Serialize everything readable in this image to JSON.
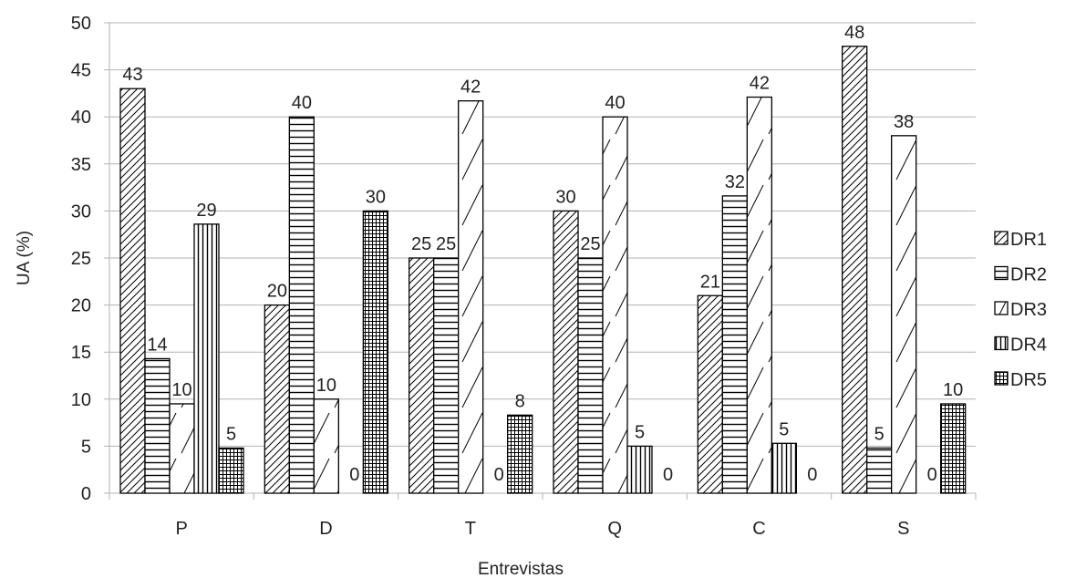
{
  "chart_data": {
    "type": "bar",
    "title": "",
    "xlabel": "Entrevistas",
    "ylabel": "UA (%)",
    "categories": [
      "P",
      "D",
      "T",
      "Q",
      "C",
      "S"
    ],
    "ylim": [
      0,
      50
    ],
    "yticks": [
      0,
      5,
      10,
      15,
      20,
      25,
      30,
      35,
      40,
      45,
      50
    ],
    "grid": true,
    "legend_position": "right",
    "series": [
      {
        "name": "DR1",
        "pattern": "diagonal-hatch",
        "values": [
          43,
          20,
          25,
          30,
          21,
          47.5
        ],
        "labels": [
          "43",
          "20",
          "25",
          "30",
          "21",
          "48"
        ]
      },
      {
        "name": "DR2",
        "pattern": "horizontal-lines",
        "values": [
          14.3,
          40,
          25,
          25,
          31.6,
          4.8
        ],
        "labels": [
          "14",
          "40",
          "25",
          "25",
          "32",
          "5"
        ]
      },
      {
        "name": "DR3",
        "pattern": "sparse-diagonal",
        "values": [
          9.5,
          10,
          41.7,
          40,
          42.1,
          38
        ],
        "labels": [
          "10",
          "10",
          "42",
          "40",
          "42",
          "38"
        ]
      },
      {
        "name": "DR4",
        "pattern": "vertical-lines",
        "values": [
          28.6,
          0,
          0,
          5,
          5.3,
          0
        ],
        "labels": [
          "29",
          "0",
          "0",
          "5",
          "5",
          "0"
        ]
      },
      {
        "name": "DR5",
        "pattern": "grid",
        "values": [
          4.8,
          30,
          8.3,
          0,
          0,
          9.5
        ],
        "labels": [
          "5",
          "30",
          "8",
          "0",
          "0",
          "10"
        ]
      }
    ]
  }
}
